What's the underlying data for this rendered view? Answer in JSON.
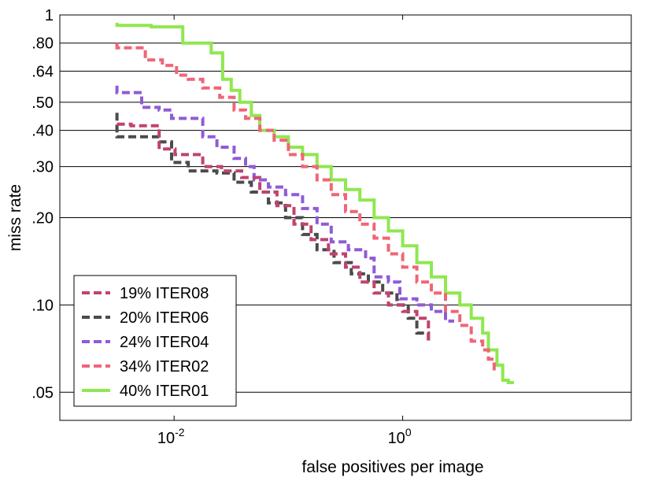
{
  "chart_data": {
    "type": "line",
    "title": "",
    "xlabel": "false positives per image",
    "ylabel": "miss rate",
    "xscale": "log",
    "yscale": "log",
    "xlim": [
      0.001,
      100
    ],
    "ylim": [
      0.04,
      1
    ],
    "x_ticks": [
      {
        "value": 0.01,
        "base": "10",
        "exp": "-2"
      },
      {
        "value": 1,
        "base": "10",
        "exp": "0"
      }
    ],
    "y_ticks": [
      {
        "value": 1,
        "label": "1"
      },
      {
        "value": 0.8,
        "label": ".80"
      },
      {
        "value": 0.64,
        "label": ".64"
      },
      {
        "value": 0.5,
        "label": ".50"
      },
      {
        "value": 0.4,
        "label": ".40"
      },
      {
        "value": 0.3,
        "label": ".30"
      },
      {
        "value": 0.2,
        "label": ".20"
      },
      {
        "value": 0.1,
        "label": ".10"
      },
      {
        "value": 0.05,
        "label": ".05"
      }
    ],
    "grid": "horizontal",
    "legend_position": "bottom-left",
    "series": [
      {
        "name": "19% ITER08",
        "color": "#c0436f",
        "dash": "dashed",
        "points": [
          [
            0.00316,
            0.42
          ],
          [
            0.0042,
            0.42
          ],
          [
            0.0042,
            0.415
          ],
          [
            0.0074,
            0.415
          ],
          [
            0.0074,
            0.345
          ],
          [
            0.0102,
            0.345
          ],
          [
            0.0102,
            0.33
          ],
          [
            0.0178,
            0.33
          ],
          [
            0.0178,
            0.3
          ],
          [
            0.026,
            0.3
          ],
          [
            0.026,
            0.29
          ],
          [
            0.039,
            0.29
          ],
          [
            0.039,
            0.275
          ],
          [
            0.0562,
            0.275
          ],
          [
            0.0562,
            0.245
          ],
          [
            0.0794,
            0.245
          ],
          [
            0.0794,
            0.22
          ],
          [
            0.112,
            0.22
          ],
          [
            0.112,
            0.19
          ],
          [
            0.158,
            0.19
          ],
          [
            0.158,
            0.168
          ],
          [
            0.224,
            0.168
          ],
          [
            0.224,
            0.15
          ],
          [
            0.316,
            0.15
          ],
          [
            0.316,
            0.135
          ],
          [
            0.422,
            0.135
          ],
          [
            0.422,
            0.12
          ],
          [
            0.562,
            0.12
          ],
          [
            0.562,
            0.11
          ],
          [
            0.75,
            0.11
          ],
          [
            0.75,
            0.1
          ],
          [
            1.0,
            0.1
          ],
          [
            1.0,
            0.095
          ],
          [
            1.33,
            0.095
          ],
          [
            1.33,
            0.09
          ],
          [
            1.68,
            0.09
          ],
          [
            1.68,
            0.075
          ]
        ]
      },
      {
        "name": "20% ITER06",
        "color": "#4b4b4b",
        "dash": "dashed",
        "points": [
          [
            0.00316,
            0.46
          ],
          [
            0.00316,
            0.38
          ],
          [
            0.0074,
            0.38
          ],
          [
            0.0074,
            0.365
          ],
          [
            0.0095,
            0.365
          ],
          [
            0.0095,
            0.31
          ],
          [
            0.0133,
            0.31
          ],
          [
            0.0133,
            0.29
          ],
          [
            0.0237,
            0.29
          ],
          [
            0.0237,
            0.285
          ],
          [
            0.0335,
            0.285
          ],
          [
            0.0335,
            0.265
          ],
          [
            0.0474,
            0.265
          ],
          [
            0.0474,
            0.245
          ],
          [
            0.0668,
            0.245
          ],
          [
            0.0668,
            0.225
          ],
          [
            0.0944,
            0.225
          ],
          [
            0.0944,
            0.2
          ],
          [
            0.133,
            0.2
          ],
          [
            0.133,
            0.175
          ],
          [
            0.178,
            0.175
          ],
          [
            0.178,
            0.155
          ],
          [
            0.251,
            0.155
          ],
          [
            0.251,
            0.14
          ],
          [
            0.355,
            0.14
          ],
          [
            0.355,
            0.128
          ],
          [
            0.501,
            0.128
          ],
          [
            0.501,
            0.12
          ],
          [
            0.668,
            0.12
          ],
          [
            0.668,
            0.11
          ],
          [
            0.89,
            0.11
          ],
          [
            0.89,
            0.1
          ],
          [
            1.12,
            0.1
          ],
          [
            1.12,
            0.09
          ],
          [
            1.33,
            0.09
          ],
          [
            1.33,
            0.08
          ],
          [
            1.68,
            0.08
          ],
          [
            1.68,
            0.075
          ]
        ]
      },
      {
        "name": "24% ITER04",
        "color": "#8e5cd8",
        "dash": "dashed",
        "points": [
          [
            0.00316,
            0.57
          ],
          [
            0.00316,
            0.54
          ],
          [
            0.0052,
            0.54
          ],
          [
            0.0052,
            0.48
          ],
          [
            0.0074,
            0.48
          ],
          [
            0.0074,
            0.47
          ],
          [
            0.0095,
            0.47
          ],
          [
            0.0095,
            0.44
          ],
          [
            0.0178,
            0.44
          ],
          [
            0.0178,
            0.38
          ],
          [
            0.0237,
            0.38
          ],
          [
            0.0237,
            0.35
          ],
          [
            0.0335,
            0.35
          ],
          [
            0.0335,
            0.32
          ],
          [
            0.0422,
            0.32
          ],
          [
            0.0422,
            0.3
          ],
          [
            0.0501,
            0.3
          ],
          [
            0.0501,
            0.27
          ],
          [
            0.0668,
            0.27
          ],
          [
            0.0668,
            0.255
          ],
          [
            0.0944,
            0.255
          ],
          [
            0.0944,
            0.24
          ],
          [
            0.133,
            0.24
          ],
          [
            0.133,
            0.215
          ],
          [
            0.178,
            0.215
          ],
          [
            0.178,
            0.19
          ],
          [
            0.237,
            0.19
          ],
          [
            0.237,
            0.165
          ],
          [
            0.335,
            0.165
          ],
          [
            0.335,
            0.155
          ],
          [
            0.474,
            0.155
          ],
          [
            0.474,
            0.145
          ],
          [
            0.562,
            0.145
          ],
          [
            0.562,
            0.125
          ],
          [
            0.75,
            0.125
          ],
          [
            0.75,
            0.12
          ],
          [
            0.944,
            0.12
          ],
          [
            0.944,
            0.105
          ],
          [
            1.33,
            0.105
          ],
          [
            1.33,
            0.1
          ],
          [
            1.78,
            0.1
          ],
          [
            1.78,
            0.095
          ],
          [
            2.37,
            0.095
          ],
          [
            2.37,
            0.088
          ],
          [
            2.82,
            0.088
          ]
        ]
      },
      {
        "name": "34% ITER02",
        "color": "#ef6676",
        "dash": "dashed",
        "points": [
          [
            0.00316,
            0.8
          ],
          [
            0.00316,
            0.77
          ],
          [
            0.0056,
            0.77
          ],
          [
            0.0056,
            0.7
          ],
          [
            0.0079,
            0.7
          ],
          [
            0.0079,
            0.67
          ],
          [
            0.0105,
            0.67
          ],
          [
            0.0105,
            0.62
          ],
          [
            0.0133,
            0.62
          ],
          [
            0.0133,
            0.6
          ],
          [
            0.0178,
            0.6
          ],
          [
            0.0178,
            0.56
          ],
          [
            0.0251,
            0.56
          ],
          [
            0.0251,
            0.52
          ],
          [
            0.0335,
            0.52
          ],
          [
            0.0335,
            0.47
          ],
          [
            0.0422,
            0.47
          ],
          [
            0.0422,
            0.44
          ],
          [
            0.0562,
            0.44
          ],
          [
            0.0562,
            0.4
          ],
          [
            0.075,
            0.4
          ],
          [
            0.075,
            0.37
          ],
          [
            0.1,
            0.37
          ],
          [
            0.1,
            0.33
          ],
          [
            0.133,
            0.33
          ],
          [
            0.133,
            0.3
          ],
          [
            0.178,
            0.3
          ],
          [
            0.178,
            0.27
          ],
          [
            0.237,
            0.27
          ],
          [
            0.237,
            0.24
          ],
          [
            0.316,
            0.24
          ],
          [
            0.316,
            0.21
          ],
          [
            0.422,
            0.21
          ],
          [
            0.422,
            0.19
          ],
          [
            0.562,
            0.19
          ],
          [
            0.562,
            0.17
          ],
          [
            0.75,
            0.17
          ],
          [
            0.75,
            0.15
          ],
          [
            1.0,
            0.15
          ],
          [
            1.0,
            0.135
          ],
          [
            1.33,
            0.135
          ],
          [
            1.33,
            0.12
          ],
          [
            1.78,
            0.12
          ],
          [
            1.78,
            0.11
          ],
          [
            2.37,
            0.11
          ],
          [
            2.37,
            0.095
          ],
          [
            3.16,
            0.095
          ],
          [
            3.16,
            0.085
          ],
          [
            3.98,
            0.085
          ],
          [
            3.98,
            0.075
          ],
          [
            5.01,
            0.075
          ],
          [
            5.01,
            0.07
          ],
          [
            5.62,
            0.07
          ],
          [
            5.62,
            0.065
          ],
          [
            6.31,
            0.065
          ],
          [
            6.31,
            0.058
          ]
        ]
      },
      {
        "name": "40% ITER01",
        "color": "#8fe84f",
        "dash": "solid",
        "points": [
          [
            0.00316,
            0.94
          ],
          [
            0.00316,
            0.92
          ],
          [
            0.0063,
            0.92
          ],
          [
            0.0063,
            0.91
          ],
          [
            0.0119,
            0.91
          ],
          [
            0.0119,
            0.8
          ],
          [
            0.0211,
            0.8
          ],
          [
            0.0211,
            0.74
          ],
          [
            0.0266,
            0.74
          ],
          [
            0.0266,
            0.6
          ],
          [
            0.0316,
            0.6
          ],
          [
            0.0316,
            0.55
          ],
          [
            0.0376,
            0.55
          ],
          [
            0.0376,
            0.5
          ],
          [
            0.0474,
            0.5
          ],
          [
            0.0474,
            0.45
          ],
          [
            0.0562,
            0.45
          ],
          [
            0.0562,
            0.4
          ],
          [
            0.075,
            0.4
          ],
          [
            0.075,
            0.38
          ],
          [
            0.1,
            0.38
          ],
          [
            0.1,
            0.35
          ],
          [
            0.133,
            0.35
          ],
          [
            0.133,
            0.33
          ],
          [
            0.178,
            0.33
          ],
          [
            0.178,
            0.3
          ],
          [
            0.237,
            0.3
          ],
          [
            0.237,
            0.27
          ],
          [
            0.316,
            0.27
          ],
          [
            0.316,
            0.25
          ],
          [
            0.422,
            0.25
          ],
          [
            0.422,
            0.23
          ],
          [
            0.562,
            0.23
          ],
          [
            0.562,
            0.2
          ],
          [
            0.75,
            0.2
          ],
          [
            0.75,
            0.18
          ],
          [
            1.0,
            0.18
          ],
          [
            1.0,
            0.16
          ],
          [
            1.33,
            0.16
          ],
          [
            1.33,
            0.14
          ],
          [
            1.78,
            0.14
          ],
          [
            1.78,
            0.125
          ],
          [
            2.37,
            0.125
          ],
          [
            2.37,
            0.11
          ],
          [
            3.16,
            0.11
          ],
          [
            3.16,
            0.1
          ],
          [
            3.98,
            0.1
          ],
          [
            3.98,
            0.09
          ],
          [
            5.01,
            0.09
          ],
          [
            5.01,
            0.08
          ],
          [
            5.62,
            0.08
          ],
          [
            5.62,
            0.07
          ],
          [
            6.68,
            0.07
          ],
          [
            6.68,
            0.062
          ],
          [
            7.5,
            0.062
          ],
          [
            7.5,
            0.055
          ],
          [
            8.4,
            0.055
          ],
          [
            8.4,
            0.054
          ],
          [
            9.4,
            0.054
          ]
        ]
      }
    ]
  }
}
